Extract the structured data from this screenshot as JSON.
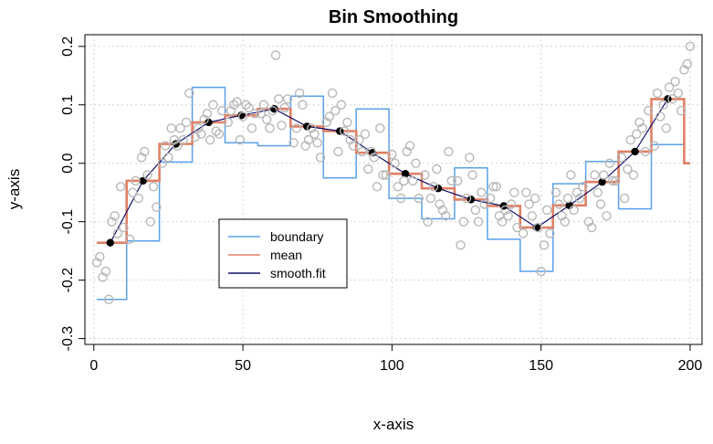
{
  "chart_data": {
    "type": "line",
    "title": "Bin Smoothing",
    "xlabel": "x-axis",
    "ylabel": "y-axis",
    "xlim": [
      -3,
      204
    ],
    "ylim": [
      -0.31,
      0.22
    ],
    "x_ticks": [
      0,
      50,
      100,
      150,
      200
    ],
    "y_ticks": [
      -0.3,
      -0.2,
      -0.1,
      0.0,
      0.1,
      0.2
    ],
    "x_tick_labels": [
      "0",
      "50",
      "100",
      "150",
      "200"
    ],
    "y_tick_labels": [
      "-0.3",
      "-0.2",
      "-0.1",
      "0.0",
      "0.1",
      "0.2"
    ],
    "grid": true,
    "legend_position": "lower-left",
    "legend": [
      "boundary",
      "mean",
      "smooth.fit"
    ],
    "colors": {
      "boundary": "#5aa0ea",
      "mean": "#e08066",
      "smooth_fit": "#10106a",
      "points": "#b8b8b8",
      "fit_points": "#000000",
      "grid": "#d4d4d4"
    },
    "series": [
      {
        "name": "boundary",
        "kind": "step",
        "x": [
          1,
          11,
          11,
          22,
          22,
          33,
          33,
          44,
          44,
          55,
          55,
          66,
          66,
          77,
          77,
          88,
          88,
          99,
          99,
          110,
          110,
          121,
          121,
          132,
          132,
          143,
          143,
          154,
          154,
          165,
          165,
          176,
          176,
          187,
          187,
          198
        ],
        "y": [
          -0.233,
          -0.233,
          -0.133,
          -0.133,
          0.002,
          0.002,
          0.13,
          0.13,
          0.035,
          0.035,
          0.03,
          0.03,
          0.115,
          0.115,
          -0.025,
          -0.025,
          0.093,
          0.093,
          -0.06,
          -0.06,
          -0.095,
          -0.095,
          -0.008,
          -0.008,
          -0.13,
          -0.13,
          -0.185,
          -0.185,
          -0.035,
          -0.035,
          0.003,
          0.003,
          -0.078,
          -0.078,
          0.032,
          0.032
        ]
      },
      {
        "name": "mean",
        "kind": "step",
        "x": [
          1,
          11,
          11,
          22,
          22,
          33,
          33,
          44,
          44,
          55,
          55,
          66,
          66,
          77,
          77,
          88,
          88,
          99,
          99,
          110,
          110,
          121,
          121,
          132,
          132,
          143,
          143,
          154,
          154,
          165,
          165,
          176,
          176,
          187,
          187,
          198,
          198,
          200
        ],
        "y": [
          -0.136,
          -0.136,
          -0.03,
          -0.03,
          0.033,
          0.033,
          0.07,
          0.07,
          0.082,
          0.082,
          0.093,
          0.093,
          0.063,
          0.063,
          0.055,
          0.055,
          0.018,
          0.018,
          -0.018,
          -0.018,
          -0.043,
          -0.043,
          -0.062,
          -0.062,
          -0.073,
          -0.073,
          -0.11,
          -0.11,
          -0.072,
          -0.072,
          -0.032,
          -0.032,
          0.02,
          0.02,
          0.11,
          0.11,
          0.0,
          0.0
        ]
      },
      {
        "name": "smooth.fit",
        "kind": "line",
        "x": [
          5.5,
          16.5,
          27.5,
          38.5,
          49.5,
          60.5,
          71.5,
          82.5,
          93.5,
          104.5,
          115.5,
          126.5,
          137.5,
          148.5,
          159.5,
          170.5,
          181.5,
          192.5
        ],
        "y": [
          -0.136,
          -0.03,
          0.033,
          0.07,
          0.082,
          0.093,
          0.063,
          0.055,
          0.018,
          -0.018,
          -0.043,
          -0.062,
          -0.073,
          -0.11,
          -0.072,
          -0.032,
          0.02,
          0.11
        ]
      }
    ],
    "scatter": {
      "x": [
        1,
        2,
        3,
        4,
        5,
        6,
        7,
        8,
        9,
        10,
        12,
        13,
        14,
        15,
        16,
        17,
        18,
        19,
        20,
        21,
        23,
        24,
        25,
        26,
        27,
        28,
        29,
        30,
        31,
        32,
        34,
        35,
        36,
        37,
        38,
        39,
        40,
        41,
        42,
        43,
        45,
        46,
        47,
        48,
        49,
        50,
        51,
        52,
        53,
        54,
        56,
        57,
        58,
        59,
        60,
        61,
        62,
        63,
        64,
        65,
        67,
        68,
        69,
        70,
        71,
        72,
        73,
        74,
        75,
        76,
        78,
        79,
        80,
        81,
        82,
        83,
        84,
        85,
        86,
        87,
        89,
        90,
        91,
        92,
        93,
        94,
        95,
        96,
        97,
        98,
        100,
        101,
        102,
        103,
        104,
        105,
        106,
        107,
        108,
        109,
        111,
        112,
        113,
        114,
        115,
        116,
        117,
        118,
        119,
        120,
        122,
        123,
        124,
        125,
        126,
        127,
        128,
        129,
        130,
        131,
        133,
        134,
        135,
        136,
        137,
        138,
        139,
        140,
        141,
        142,
        144,
        145,
        146,
        147,
        148,
        149,
        150,
        151,
        152,
        153,
        155,
        156,
        157,
        158,
        159,
        160,
        161,
        162,
        163,
        164,
        166,
        167,
        168,
        169,
        170,
        171,
        172,
        173,
        174,
        175,
        177,
        178,
        179,
        180,
        181,
        182,
        183,
        184,
        185,
        186,
        188,
        189,
        190,
        191,
        192,
        193,
        194,
        195,
        196,
        197,
        198,
        199,
        200
      ],
      "y": [
        -0.17,
        -0.16,
        -0.195,
        -0.185,
        -0.233,
        -0.1,
        -0.09,
        -0.12,
        -0.04,
        -0.11,
        -0.13,
        -0.05,
        -0.03,
        -0.06,
        0.01,
        0.02,
        -0.02,
        -0.1,
        -0.04,
        -0.075,
        0.0,
        0.03,
        0.01,
        0.06,
        0.04,
        0.03,
        0.06,
        0.04,
        0.07,
        0.12,
        0.045,
        0.06,
        0.05,
        0.075,
        0.085,
        0.04,
        0.1,
        0.055,
        0.05,
        0.09,
        0.07,
        0.09,
        0.1,
        0.105,
        0.04,
        0.08,
        0.1,
        0.095,
        0.06,
        0.085,
        0.085,
        0.1,
        0.075,
        0.06,
        0.09,
        0.185,
        0.11,
        0.065,
        0.095,
        0.11,
        0.035,
        0.06,
        0.12,
        0.1,
        0.03,
        0.04,
        0.06,
        0.05,
        0.035,
        0.01,
        0.07,
        0.08,
        0.12,
        0.09,
        0.02,
        0.1,
        0.055,
        0.07,
        0.04,
        0.03,
        0.04,
        0.02,
        0.05,
        -0.01,
        0.02,
        0.01,
        -0.04,
        0.06,
        -0.02,
        -0.02,
        0.015,
        0.0,
        -0.04,
        -0.06,
        -0.03,
        0.02,
        0.03,
        -0.03,
        0.0,
        -0.06,
        -0.02,
        -0.1,
        -0.06,
        -0.04,
        -0.01,
        -0.07,
        -0.08,
        -0.09,
        0.02,
        -0.03,
        -0.03,
        -0.14,
        -0.1,
        -0.06,
        0.01,
        -0.02,
        -0.08,
        -0.1,
        -0.05,
        -0.07,
        -0.06,
        -0.04,
        -0.04,
        -0.09,
        -0.1,
        -0.08,
        -0.09,
        -0.07,
        -0.05,
        -0.11,
        -0.12,
        -0.05,
        -0.07,
        -0.09,
        -0.06,
        -0.11,
        -0.185,
        -0.14,
        -0.08,
        -0.12,
        -0.05,
        -0.07,
        -0.09,
        -0.1,
        -0.06,
        -0.02,
        -0.08,
        -0.05,
        -0.06,
        -0.04,
        -0.1,
        -0.11,
        -0.02,
        -0.05,
        -0.07,
        -0.02,
        -0.09,
        0.0,
        -0.03,
        -0.03,
        0.01,
        -0.06,
        -0.01,
        0.04,
        -0.02,
        0.05,
        0.07,
        0.06,
        0.02,
        0.09,
        0.03,
        0.12,
        0.08,
        0.1,
        0.06,
        0.13,
        0.11,
        0.14,
        0.12,
        0.09,
        0.16,
        0.17,
        0.2
      ]
    }
  }
}
